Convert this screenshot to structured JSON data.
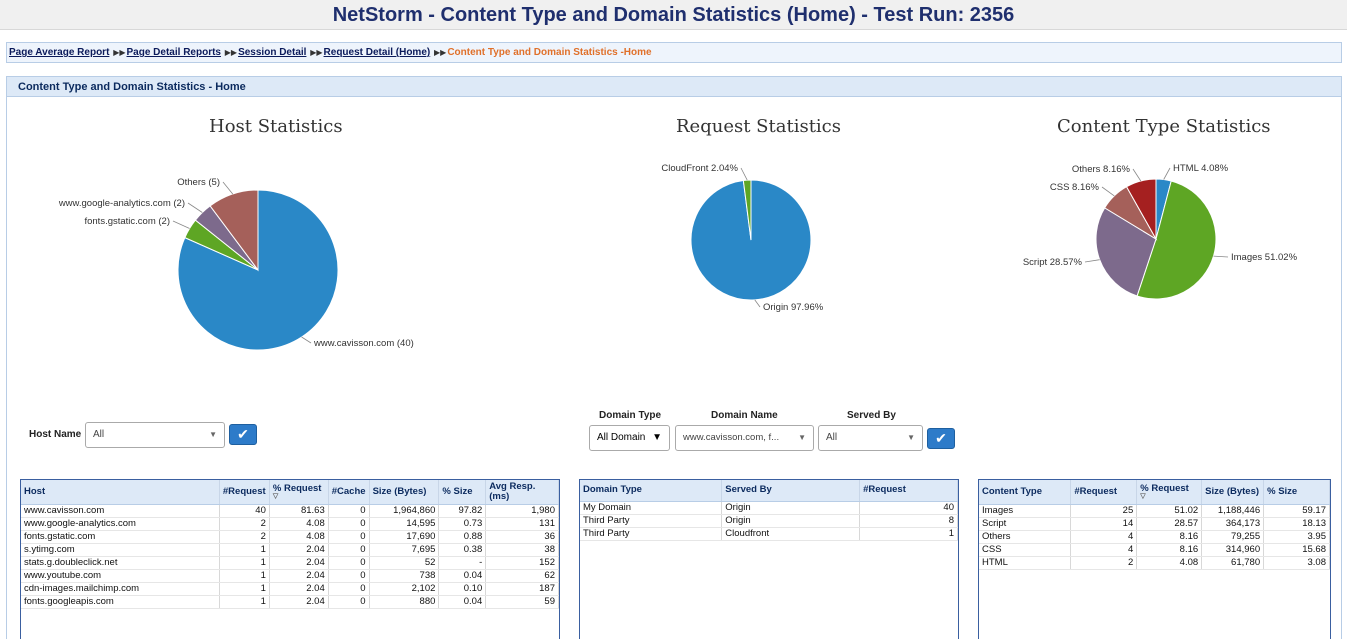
{
  "title": "NetStorm - Content Type and Domain Statistics (Home) - Test Run: 2356",
  "breadcrumb": {
    "items": [
      "Page Average Report",
      "Page Detail Reports",
      "Session Detail",
      "Request Detail (Home)"
    ],
    "current": "Content Type and Domain Statistics -Home"
  },
  "panel_title": "Content Type and Domain Statistics - Home",
  "colors": {
    "blue": "#2a88c7",
    "green": "#5ea624",
    "purple": "#7d6a8c",
    "rose": "#a5605a",
    "darkred": "#a52020"
  },
  "chart_data": [
    {
      "type": "pie",
      "title": "Host Statistics",
      "slices": [
        {
          "label": "www.cavisson.com (40)",
          "value": 40,
          "color": "#2a88c7"
        },
        {
          "label": "fonts.gstatic.com (2)",
          "value": 2,
          "color": "#5ea624"
        },
        {
          "label": "www.google-analytics.com (2)",
          "value": 2,
          "color": "#7d6a8c"
        },
        {
          "label": "Others (5)",
          "value": 5,
          "color": "#a5605a"
        }
      ]
    },
    {
      "type": "pie",
      "title": "Request Statistics",
      "slices": [
        {
          "label": "Origin 97.96%",
          "value": 97.96,
          "color": "#2a88c7"
        },
        {
          "label": "CloudFront 2.04%",
          "value": 2.04,
          "color": "#5ea624"
        }
      ]
    },
    {
      "type": "pie",
      "title": "Content Type Statistics",
      "slices": [
        {
          "label": "HTML 4.08%",
          "value": 4.08,
          "color": "#2a88c7"
        },
        {
          "label": "Images 51.02%",
          "value": 51.02,
          "color": "#5ea624"
        },
        {
          "label": "Script 28.57%",
          "value": 28.57,
          "color": "#7d6a8c"
        },
        {
          "label": "CSS 8.16%",
          "value": 8.16,
          "color": "#a5605a"
        },
        {
          "label": "Others 8.16%",
          "value": 8.16,
          "color": "#a52020"
        }
      ]
    }
  ],
  "host_filter": {
    "label": "Host Name",
    "value": "All"
  },
  "domain_filter": {
    "domain_type_label": "Domain Type",
    "domain_type_value": "All Domain",
    "domain_name_label": "Domain Name",
    "domain_name_value": "www.cavisson.com, f...",
    "served_by_label": "Served By",
    "served_by_value": "All"
  },
  "host_table": {
    "headers": [
      "Host",
      "#Request",
      "% Request",
      "#Cache",
      "Size (Bytes)",
      "% Size",
      "Avg Resp. (ms)"
    ],
    "rows": [
      [
        "www.cavisson.com",
        "40",
        "81.63",
        "0",
        "1,964,860",
        "97.82",
        "1,980"
      ],
      [
        "www.google-analytics.com",
        "2",
        "4.08",
        "0",
        "14,595",
        "0.73",
        "131"
      ],
      [
        "fonts.gstatic.com",
        "2",
        "4.08",
        "0",
        "17,690",
        "0.88",
        "36"
      ],
      [
        "s.ytimg.com",
        "1",
        "2.04",
        "0",
        "7,695",
        "0.38",
        "38"
      ],
      [
        "stats.g.doubleclick.net",
        "1",
        "2.04",
        "0",
        "52",
        "-",
        "152"
      ],
      [
        "www.youtube.com",
        "1",
        "2.04",
        "0",
        "738",
        "0.04",
        "62"
      ],
      [
        "cdn-images.mailchimp.com",
        "1",
        "2.04",
        "0",
        "2,102",
        "0.10",
        "187"
      ],
      [
        "fonts.googleapis.com",
        "1",
        "2.04",
        "0",
        "880",
        "0.04",
        "59"
      ]
    ]
  },
  "domain_table": {
    "headers": [
      "Domain Type",
      "Served By",
      "#Request"
    ],
    "rows": [
      [
        "My Domain",
        "Origin",
        "40"
      ],
      [
        "Third Party",
        "Origin",
        "8"
      ],
      [
        "Third Party",
        "Cloudfront",
        "1"
      ]
    ]
  },
  "content_table": {
    "headers": [
      "Content Type",
      "#Request",
      "% Request",
      "Size (Bytes)",
      "% Size"
    ],
    "rows": [
      [
        "Images",
        "25",
        "51.02",
        "1,188,446",
        "59.17"
      ],
      [
        "Script",
        "14",
        "28.57",
        "364,173",
        "18.13"
      ],
      [
        "Others",
        "4",
        "8.16",
        "79,255",
        "3.95"
      ],
      [
        "CSS",
        "4",
        "8.16",
        "314,960",
        "15.68"
      ],
      [
        "HTML",
        "2",
        "4.08",
        "61,780",
        "3.08"
      ]
    ]
  }
}
